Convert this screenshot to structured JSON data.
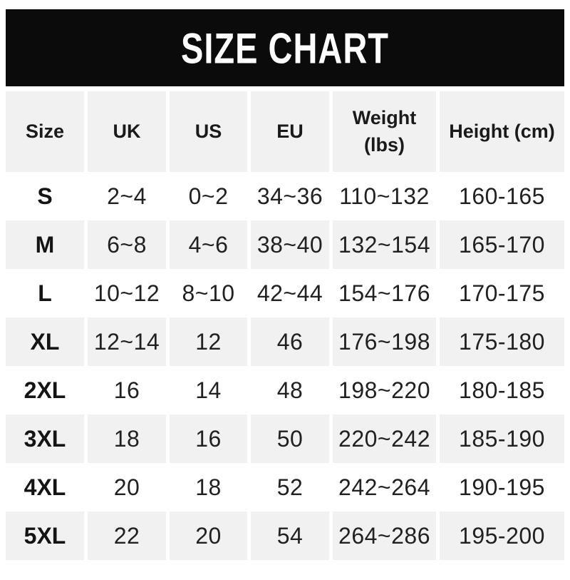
{
  "banner": {
    "bg_color": "#0b0b0b",
    "text_color": "#ffffff"
  },
  "chart_data": {
    "type": "table",
    "title": "SIZE CHART",
    "columns": [
      "Size",
      "UK",
      "US",
      "EU",
      "Weight (lbs)",
      "Height (cm)"
    ],
    "rows": [
      [
        "S",
        "2~4",
        "0~2",
        "34~36",
        "110~132",
        "160-165"
      ],
      [
        "M",
        "6~8",
        "4~6",
        "38~40",
        "132~154",
        "165-170"
      ],
      [
        "L",
        "10~12",
        "8~10",
        "42~44",
        "154~176",
        "170-175"
      ],
      [
        "XL",
        "12~14",
        "12",
        "46",
        "176~198",
        "175-180"
      ],
      [
        "2XL",
        "16",
        "14",
        "48",
        "198~220",
        "180-185"
      ],
      [
        "3XL",
        "18",
        "16",
        "50",
        "220~242",
        "185-190"
      ],
      [
        "4XL",
        "20",
        "18",
        "52",
        "242~264",
        "190-195"
      ],
      [
        "5XL",
        "22",
        "20",
        "54",
        "264~286",
        "195-200"
      ]
    ],
    "layout": {
      "header_bg": "#f1f1f1",
      "alt_row_bg": "#f1f1f1",
      "row_bg": "#ffffff",
      "text_color": "#212121",
      "grid": "white-gutters",
      "legend": "none"
    }
  }
}
